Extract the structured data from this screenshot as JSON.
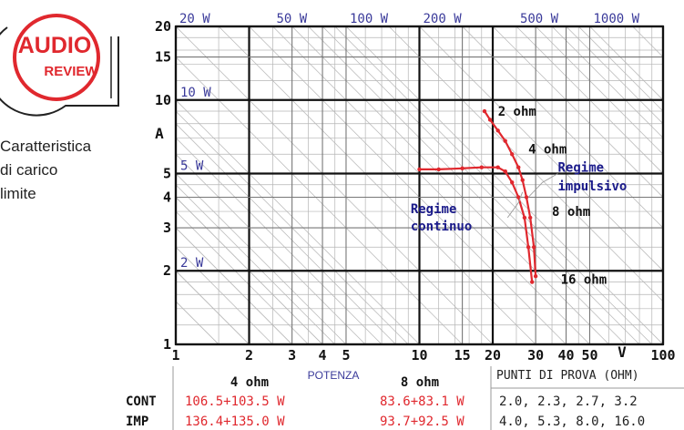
{
  "logo": {
    "line1": "AUDIO",
    "line2": "REVIEW",
    "color": "#e0282e"
  },
  "caption": {
    "lines": [
      "Caratteristica",
      "di carico",
      "limite"
    ]
  },
  "chart_data": {
    "type": "line",
    "title": "",
    "xlabel": "V",
    "ylabel": "A",
    "x_scale": "log",
    "y_scale": "log",
    "xlim": [
      1,
      100
    ],
    "ylim": [
      1,
      20
    ],
    "x_ticks": [
      {
        "v": 1,
        "label": "1"
      },
      {
        "v": 2,
        "label": "2"
      },
      {
        "v": 3,
        "label": "3"
      },
      {
        "v": 4,
        "label": "4"
      },
      {
        "v": 5,
        "label": "5"
      },
      {
        "v": 10,
        "label": "10"
      },
      {
        "v": 15,
        "label": "15"
      },
      {
        "v": 20,
        "label": "20"
      },
      {
        "v": 30,
        "label": "30"
      },
      {
        "v": 40,
        "label": "40"
      },
      {
        "v": 50,
        "label": "50"
      },
      {
        "v": 100,
        "label": "100"
      }
    ],
    "y_ticks": [
      {
        "v": 1,
        "label": "1"
      },
      {
        "v": 2,
        "label": "2"
      },
      {
        "v": 3,
        "label": "3"
      },
      {
        "v": 4,
        "label": "4"
      },
      {
        "v": 5,
        "label": "5"
      },
      {
        "v": 10,
        "label": "10"
      },
      {
        "v": 15,
        "label": "15"
      },
      {
        "v": 20,
        "label": "20"
      }
    ],
    "power_lines": [
      {
        "w": 2,
        "label": "2 W"
      },
      {
        "w": 5,
        "label": "5 W"
      },
      {
        "w": 10,
        "label": "10 W"
      },
      {
        "w": 20,
        "label": "20 W"
      },
      {
        "w": 50,
        "label": "50 W"
      },
      {
        "w": 100,
        "label": "100 W"
      },
      {
        "w": 200,
        "label": "200 W"
      },
      {
        "w": 500,
        "label": "500 W"
      },
      {
        "w": 1000,
        "label": "1000 W"
      }
    ],
    "grid": true,
    "series": [
      {
        "name": "Regime continuo",
        "color": "#e0282e",
        "points": [
          [
            10,
            5.2
          ],
          [
            12,
            5.2
          ],
          [
            15,
            5.25
          ],
          [
            18,
            5.3
          ],
          [
            21,
            5.3
          ],
          [
            22.5,
            5.1
          ]
        ]
      },
      {
        "name": "Regime impulsivo",
        "color": "#e0282e",
        "points": [
          [
            18.5,
            9.0
          ],
          [
            19.5,
            8.3
          ],
          [
            21,
            7.5
          ],
          [
            22.5,
            6.8
          ],
          [
            24,
            6.0
          ],
          [
            25.5,
            5.3
          ],
          [
            26.5,
            4.7
          ],
          [
            27.5,
            4.0
          ],
          [
            28.5,
            3.3
          ],
          [
            29.5,
            2.5
          ],
          [
            30,
            1.9
          ]
        ]
      },
      {
        "name": "",
        "color": "#e0282e",
        "points": [
          [
            22.5,
            5.1
          ],
          [
            24,
            4.6
          ],
          [
            25.5,
            4.0
          ],
          [
            27,
            3.3
          ],
          [
            28,
            2.5
          ],
          [
            29,
            1.8
          ]
        ]
      }
    ],
    "load_labels": [
      {
        "label": "2 ohm",
        "x": 21,
        "y": 9.0
      },
      {
        "label": "4 ohm",
        "x": 28,
        "y": 6.3
      },
      {
        "label": "8 ohm",
        "x": 35,
        "y": 3.5
      },
      {
        "label": "16 ohm",
        "x": 38,
        "y": 1.85
      }
    ],
    "annotations": [
      {
        "label": "Regime",
        "x": 9.2,
        "y": 3.6
      },
      {
        "label": "continuo",
        "x": 9.2,
        "y": 3.05
      },
      {
        "label": "Regime",
        "x": 37,
        "y": 5.3
      },
      {
        "label": "impulsivo",
        "x": 37,
        "y": 4.45
      }
    ]
  },
  "table": {
    "header_4ohm": "4 ohm",
    "header_potenza": "POTENZA",
    "header_8ohm": "8 ohm",
    "header_punti": "PUNTI DI PROVA (OHM)",
    "rows": [
      {
        "label": "CONT",
        "v4": "106.5+103.5 W",
        "v8": "83.6+83.1 W",
        "punti": "2.0, 2.3, 2.7, 3.2"
      },
      {
        "label": "IMP",
        "v4": "136.4+135.0 W",
        "v8": "93.7+92.5 W",
        "punti": "4.0, 5.3, 8.0, 16.0"
      }
    ]
  },
  "colors": {
    "red": "#e0282e",
    "blue": "#3a3a9a",
    "navy": "#1a1a8a",
    "grid": "#b5b5b5",
    "axis": "#111111"
  }
}
